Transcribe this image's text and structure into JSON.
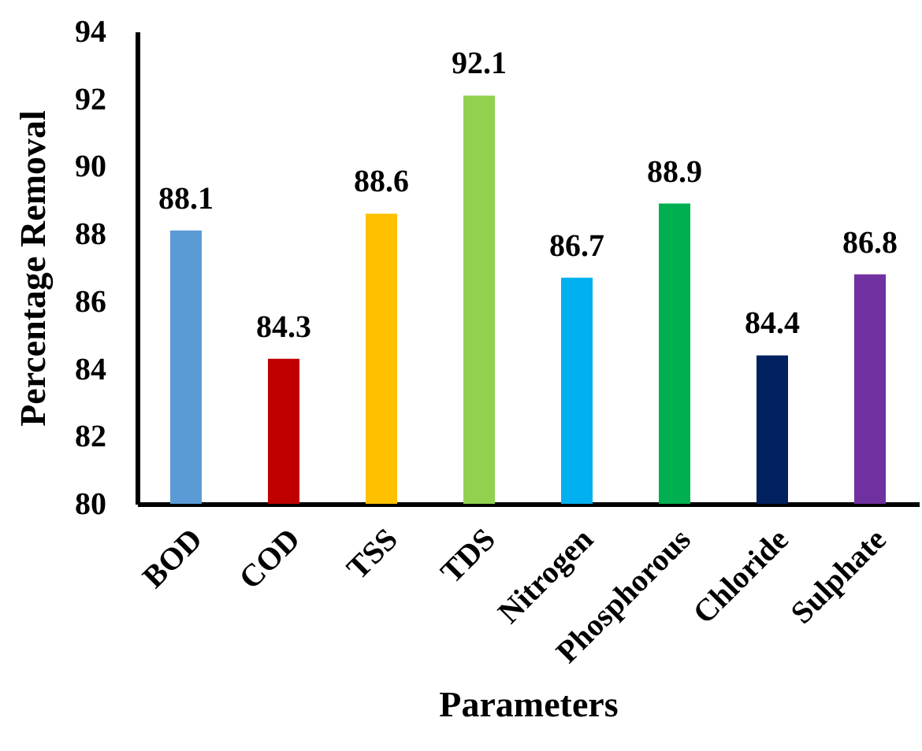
{
  "chart_data": {
    "type": "bar",
    "xlabel": "Parameters",
    "ylabel": "Percentage Removal",
    "categories": [
      "BOD",
      "COD",
      "TSS",
      "TDS",
      "Nitrogen",
      "Phosphorous",
      "Chloride",
      "Sulphate"
    ],
    "values": [
      88.1,
      84.3,
      88.6,
      92.1,
      86.7,
      88.9,
      84.4,
      86.8
    ],
    "colors": [
      "#5b9bd5",
      "#c00000",
      "#ffc000",
      "#92d050",
      "#00b0f0",
      "#00b050",
      "#002060",
      "#7030a0"
    ],
    "ylim": [
      80,
      94
    ],
    "yticks": [
      80,
      82,
      84,
      86,
      88,
      90,
      92,
      94
    ],
    "data_labels": true
  }
}
